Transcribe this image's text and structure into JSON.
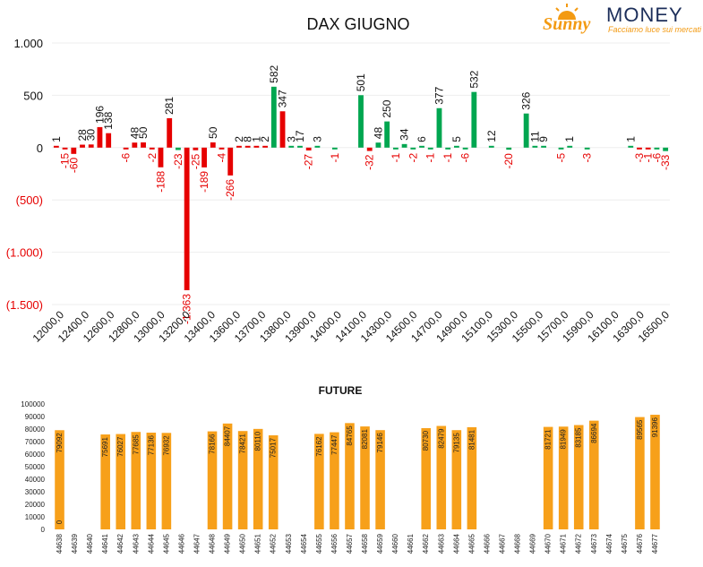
{
  "logo": {
    "brand_sunny": "Sunny",
    "brand_money": "MONEY",
    "tagline": "Facciamo luce sui mercati"
  },
  "colors": {
    "positive": "#00a650",
    "negative": "#e60000",
    "future_bar": "#f7a01a"
  },
  "chart_data": [
    {
      "type": "bar",
      "title": "DAX GIUGNO",
      "ylim": [
        -1500,
        1000
      ],
      "yticks": [
        1000,
        500,
        0,
        -500,
        -1000,
        -1500
      ],
      "ytick_labels": [
        "1.000",
        "500",
        "0",
        "(500)",
        "(1.000)",
        "(1.500)"
      ],
      "xtick_labels": [
        "12000,0",
        "12400,0",
        "12600,0",
        "12800,0",
        "13000,0",
        "13200,0",
        "13400,0",
        "13600,0",
        "13700,0",
        "13800,0",
        "13900,0",
        "14000,0",
        "14100,0",
        "14300,0",
        "14500,0",
        "14700,0",
        "14900,0",
        "15100,0",
        "15300,0",
        "15500,0",
        "15700,0",
        "15900,0",
        "16100,0",
        "16300,0",
        "16500,0"
      ],
      "grid": true,
      "series": [
        {
          "values": [
            1,
            -15,
            -60,
            28,
            30,
            196,
            138,
            0,
            -6,
            48,
            50,
            -2,
            -188,
            281,
            -23,
            -1363,
            -25,
            -189,
            50,
            -4,
            -266,
            2,
            8,
            1,
            2,
            582,
            347,
            3,
            17,
            -27,
            3,
            0,
            -1,
            0,
            0,
            501,
            -32,
            48,
            250,
            -1,
            34,
            -2,
            6,
            -1,
            377,
            -1,
            5,
            -6,
            532,
            0,
            12,
            0,
            -20,
            0,
            326,
            11,
            9,
            0,
            -5,
            1,
            0,
            -3,
            0,
            0,
            0,
            0,
            1,
            -3,
            -1,
            -6,
            -33
          ]
        }
      ],
      "data_labels": [
        "1",
        "-15",
        "-60",
        "28",
        "30",
        "196",
        "138",
        "",
        "-6",
        "48",
        "50",
        "-2",
        "-188",
        "281",
        "-23",
        "-1.363",
        "-25",
        "-189",
        "50",
        "-4",
        "-266",
        "2",
        "8",
        "1",
        "2",
        "582",
        "347",
        "3",
        "17",
        "-27",
        "3",
        "",
        "-1",
        "",
        "",
        "501",
        "-32",
        "48",
        "250",
        "-1",
        "34",
        "-2",
        "6",
        "-1",
        "377",
        "-1",
        "5",
        "-6",
        "532",
        "",
        "12",
        "",
        "-20",
        "",
        "326",
        "11",
        "9",
        "",
        "-5",
        "1",
        "",
        "-3",
        "",
        "",
        "",
        "",
        "1",
        "-3",
        "-1",
        "-6",
        "-33"
      ],
      "bar_colors": [
        "r",
        "r",
        "r",
        "r",
        "r",
        "r",
        "r",
        "r",
        "r",
        "r",
        "r",
        "r",
        "r",
        "r",
        "g",
        "r",
        "r",
        "r",
        "r",
        "r",
        "r",
        "r",
        "r",
        "r",
        "r",
        "g",
        "r",
        "g",
        "g",
        "r",
        "g",
        "g",
        "g",
        "g",
        "g",
        "g",
        "r",
        "g",
        "g",
        "g",
        "g",
        "g",
        "g",
        "g",
        "g",
        "g",
        "g",
        "g",
        "g",
        "g",
        "g",
        "g",
        "g",
        "g",
        "g",
        "g",
        "g",
        "g",
        "g",
        "g",
        "g",
        "g",
        "g",
        "g",
        "g",
        "g",
        "g",
        "r",
        "r",
        "g",
        "g"
      ]
    },
    {
      "type": "bar",
      "title": "FUTURE",
      "ylim": [
        0,
        100000
      ],
      "yticks": [
        100000,
        90000,
        80000,
        70000,
        60000,
        50000,
        40000,
        30000,
        20000,
        10000,
        0
      ],
      "categories": [
        "44638",
        "44639",
        "44640",
        "44641",
        "44642",
        "44643",
        "44644",
        "44645",
        "44646",
        "44647",
        "44648",
        "44649",
        "44650",
        "44651",
        "44652",
        "44653",
        "44654",
        "44655",
        "44656",
        "44657",
        "44658",
        "44659",
        "44660",
        "44661",
        "44662",
        "44663",
        "44664",
        "44665",
        "44666",
        "44667",
        "44668",
        "44669",
        "44670",
        "44671",
        "44672",
        "44673",
        "44674",
        "44675",
        "44676",
        "44677"
      ],
      "values": [
        79092,
        null,
        null,
        75691,
        76027,
        77685,
        77136,
        76932,
        null,
        null,
        78166,
        84407,
        78421,
        80110,
        75017,
        null,
        null,
        76162,
        77447,
        84765,
        82081,
        79146,
        null,
        null,
        80730,
        82479,
        79135,
        81481,
        null,
        null,
        null,
        null,
        81721,
        81949,
        83185,
        86694,
        null,
        null,
        89565,
        91396
      ],
      "data_labels": [
        "79092",
        "",
        "",
        "75691",
        "76027",
        "77685",
        "77136",
        "76932",
        "",
        "",
        "78166",
        "84407",
        "78421",
        "80110",
        "75017",
        "",
        "",
        "76162",
        "77447",
        "84765",
        "82081",
        "79146",
        "",
        "",
        "80730",
        "82479",
        "79135",
        "81481",
        "",
        "",
        "",
        "",
        "81721",
        "81949",
        "83185",
        "86694",
        "",
        "",
        "89565",
        "91396"
      ],
      "extra_label": "0"
    }
  ]
}
